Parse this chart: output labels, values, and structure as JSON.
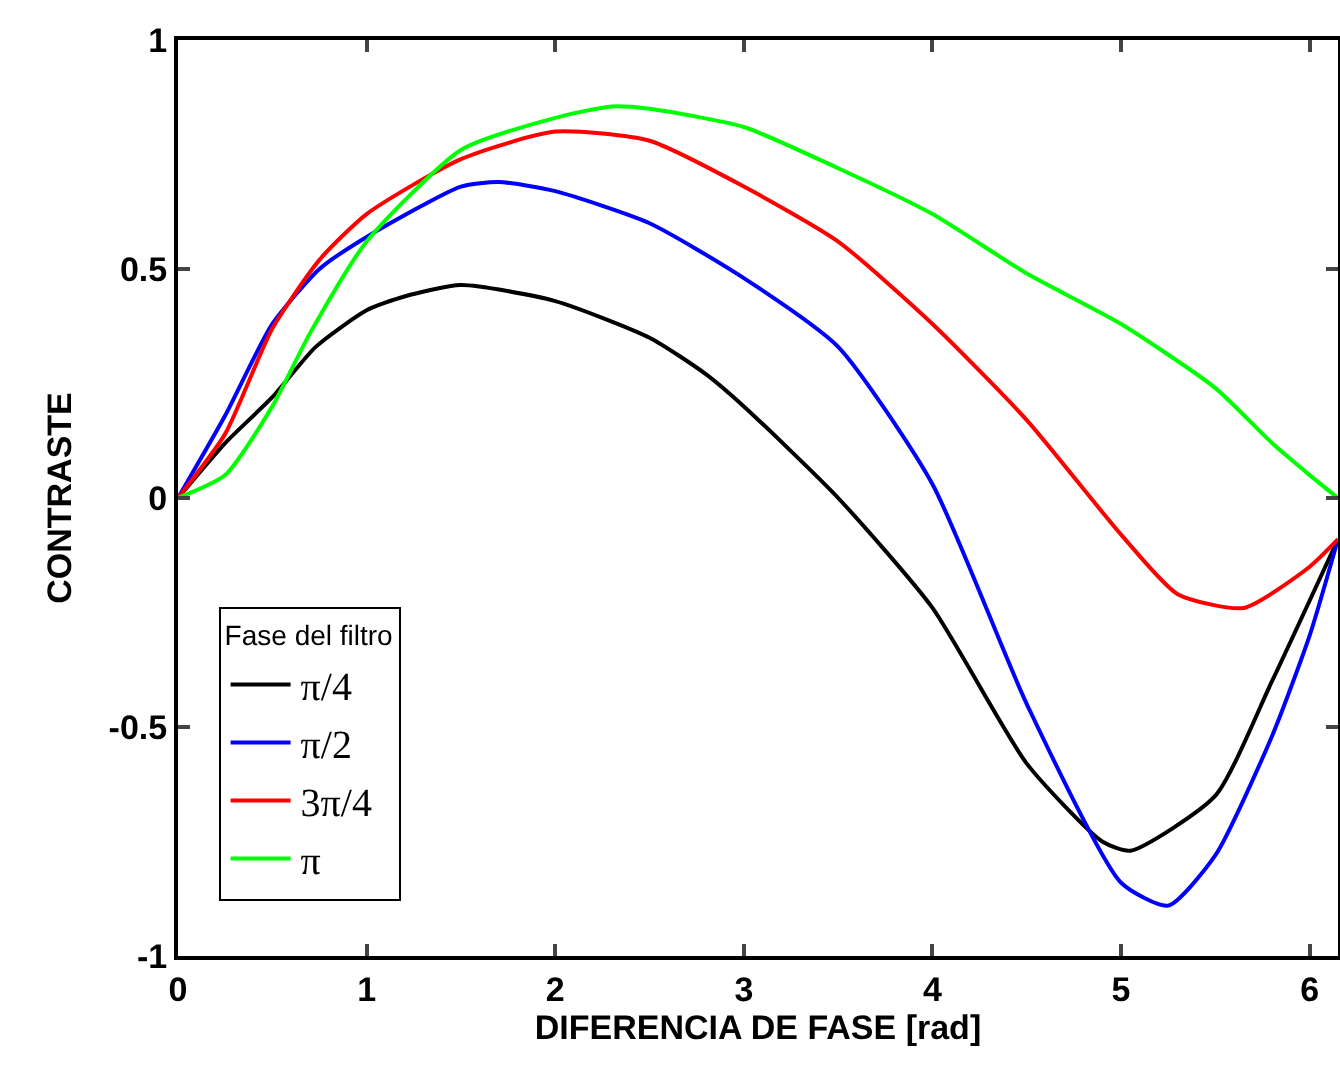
{
  "chart_data": {
    "type": "line",
    "xlabel": "DIFERENCIA DE FASE [rad]",
    "ylabel": "CONTRASTE",
    "legend_title": "Fase del filtro",
    "legend": "bottom left",
    "grid": false,
    "marker": "none",
    "line_style": "solid",
    "xlim": [
      0,
      6.15
    ],
    "xticks": [
      0,
      1,
      2,
      3,
      4,
      5,
      6
    ],
    "ylim": [
      -1,
      1
    ],
    "yticks": [
      -1,
      -0.5,
      0,
      0.5,
      1
    ],
    "series": [
      {
        "name": "π/4",
        "color": "#000000",
        "x": [
          0,
          0.25,
          0.5,
          0.73,
          1,
          1.2,
          1.5,
          2,
          2.5,
          2.8,
          3,
          3.5,
          4,
          4.5,
          4.9,
          5.05,
          5.5,
          5.8,
          6.15
        ],
        "values": [
          0,
          0.12,
          0.22,
          0.33,
          0.41,
          0.44,
          0.465,
          0.43,
          0.35,
          0.27,
          0.2,
          0,
          -0.24,
          -0.58,
          -0.75,
          -0.77,
          -0.65,
          -0.4,
          -0.09
        ]
      },
      {
        "name": "π/2",
        "color": "#0000ff",
        "x": [
          0,
          0.25,
          0.5,
          0.75,
          1,
          1.5,
          1.7,
          2,
          2.5,
          3,
          3.5,
          4,
          4.5,
          5,
          5.25,
          5.5,
          5.8,
          6,
          6.15
        ],
        "values": [
          0,
          0.18,
          0.38,
          0.5,
          0.57,
          0.68,
          0.69,
          0.67,
          0.6,
          0.48,
          0.33,
          0.03,
          -0.45,
          -0.84,
          -0.89,
          -0.78,
          -0.52,
          -0.3,
          -0.09
        ]
      },
      {
        "name": "3π/4",
        "color": "#ff0000",
        "x": [
          0,
          0.25,
          0.5,
          0.75,
          1,
          1.5,
          2,
          2.5,
          3,
          3.5,
          4,
          4.5,
          5,
          5.3,
          5.65,
          6,
          6.15
        ],
        "values": [
          0,
          0.14,
          0.37,
          0.52,
          0.62,
          0.74,
          0.8,
          0.78,
          0.68,
          0.56,
          0.38,
          0.17,
          -0.08,
          -0.21,
          -0.24,
          -0.15,
          -0.09
        ]
      },
      {
        "name": "π",
        "color": "#00ff00",
        "x": [
          0,
          0.25,
          0.5,
          0.7,
          1,
          1.5,
          2,
          2.3,
          2.5,
          3,
          3.5,
          4,
          4.5,
          5,
          5.5,
          5.8,
          6,
          6.15
        ],
        "values": [
          0,
          0.05,
          0.2,
          0.36,
          0.56,
          0.76,
          0.83,
          0.855,
          0.85,
          0.81,
          0.72,
          0.62,
          0.49,
          0.38,
          0.24,
          0.12,
          0.05,
          0
        ]
      }
    ]
  }
}
